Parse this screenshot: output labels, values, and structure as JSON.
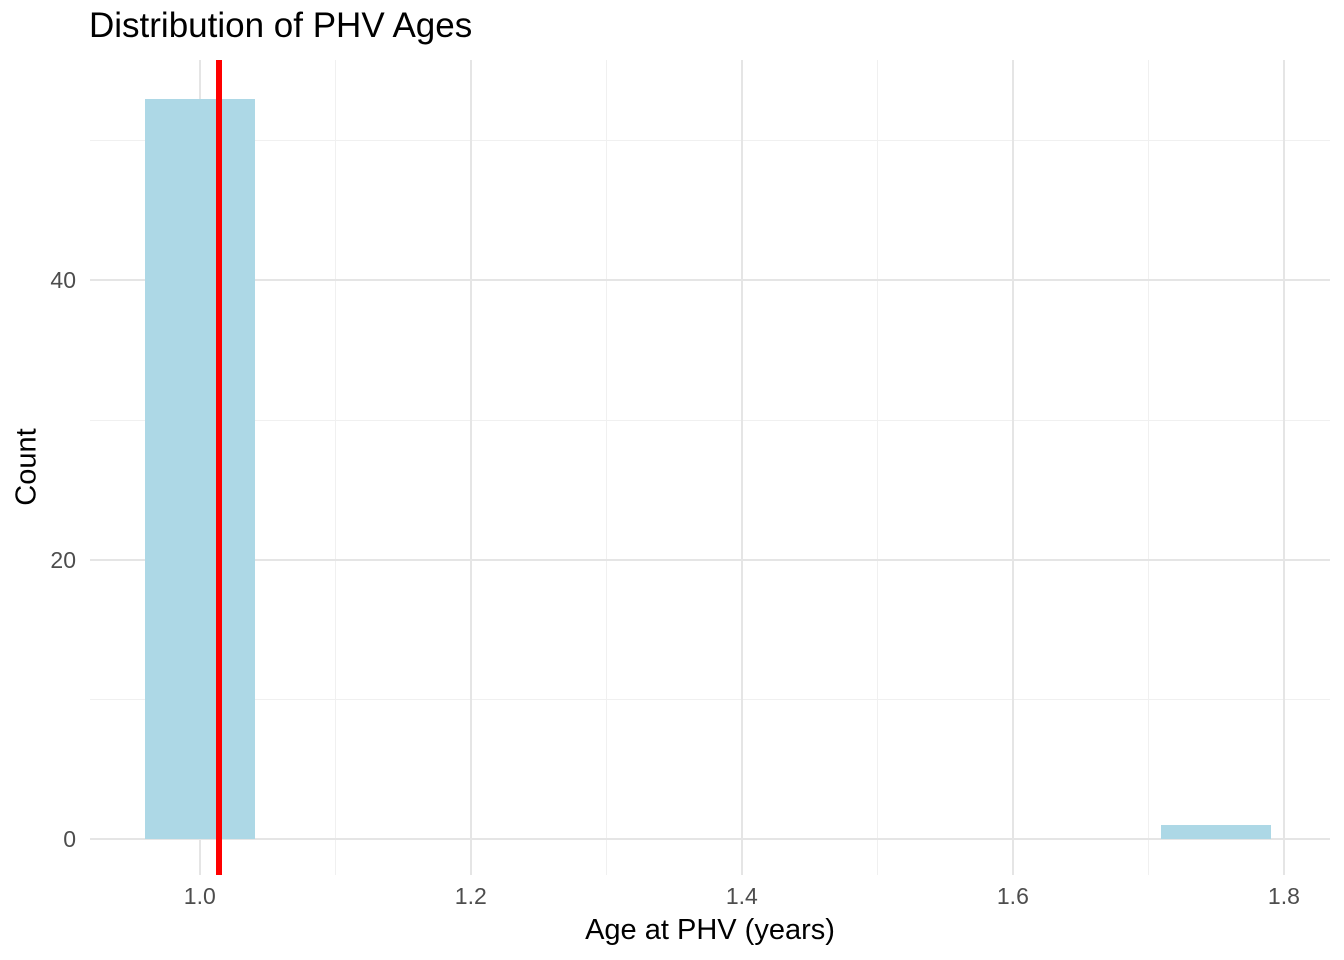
{
  "chart_data": {
    "type": "bar",
    "subtype": "histogram",
    "title": "Distribution of PHV Ages",
    "xlabel": "Age at PHV (years)",
    "ylabel": "Count",
    "xlim": [
      0.919,
      1.834
    ],
    "ylim": [
      -2.6,
      55.8
    ],
    "x_major_ticks": [
      1.0,
      1.2,
      1.4,
      1.6,
      1.8
    ],
    "x_tick_labels": [
      "1.0",
      "1.2",
      "1.4",
      "1.6",
      "1.8"
    ],
    "x_minor_ticks": [
      1.1,
      1.3,
      1.5,
      1.7
    ],
    "y_major_ticks": [
      0,
      20,
      40
    ],
    "y_tick_labels": [
      "0",
      "20",
      "40"
    ],
    "y_minor_ticks": [
      10,
      30,
      50
    ],
    "binwidth": 0.081,
    "bars": [
      {
        "center": 1.0,
        "count": 53
      },
      {
        "center": 1.75,
        "count": 1
      }
    ],
    "vline": {
      "x": 1.014
    },
    "grid": "major+minor",
    "legend_position": "none",
    "colors": {
      "bar_fill": "#ADD8E6",
      "vline": "#FF0000",
      "grid_major": "#E5E5E5",
      "grid_minor": "#F0F0F0",
      "tick_text": "#4D4D4D",
      "axis_text": "#000000",
      "background": "#FFFFFF"
    }
  }
}
